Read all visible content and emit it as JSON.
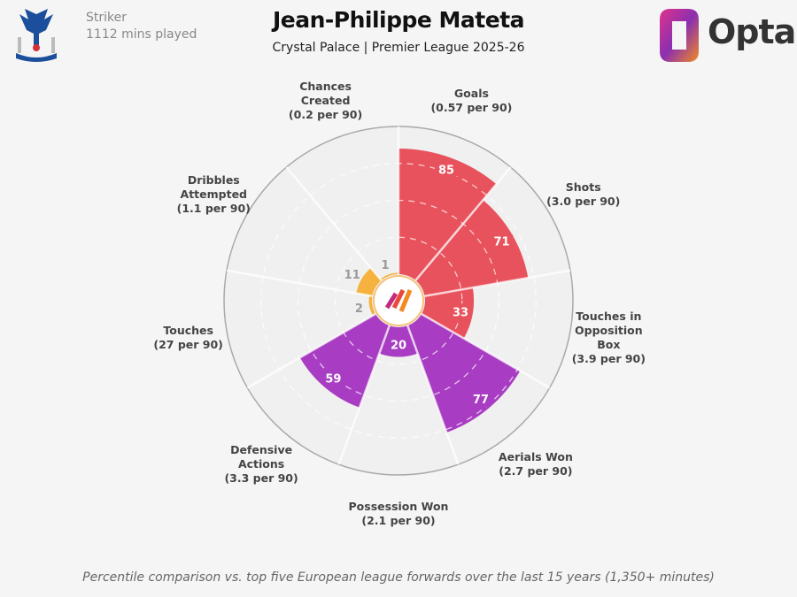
{
  "header": {
    "title": "Jean-Philippe Mateta",
    "subtitle": "Crystal Palace | Premier League 2025-26",
    "position": "Striker",
    "minutes": "1112 mins played",
    "brand": "Opta"
  },
  "footnote": "Percentile comparison vs. top five European league forwards over the last 15 years (1,350+ minutes)",
  "chart_data": {
    "type": "polar-bar",
    "range": [
      0,
      100
    ],
    "colors": {
      "attacking": "#e8525c",
      "defending": "#a83cc2",
      "possession": "#f6b23e"
    },
    "categories": [
      {
        "name": "Goals",
        "sub": "(0.57 per 90)",
        "value": 85,
        "group": "attacking"
      },
      {
        "name": "Shots",
        "sub": "(3.0 per 90)",
        "value": 71,
        "group": "attacking"
      },
      {
        "name": "Touches in Opposition Box",
        "sub": "(3.9 per 90)",
        "value": 33,
        "group": "attacking"
      },
      {
        "name": "Aerials Won",
        "sub": "(2.7 per 90)",
        "value": 77,
        "group": "defending"
      },
      {
        "name": "Possession Won",
        "sub": "(2.1 per 90)",
        "value": 20,
        "group": "defending"
      },
      {
        "name": "Defensive Actions",
        "sub": "(3.3 per 90)",
        "value": 59,
        "group": "defending"
      },
      {
        "name": "Touches",
        "sub": "(27 per 90)",
        "value": 2,
        "group": "possession"
      },
      {
        "name": "Dribbles Attempted",
        "sub": "(1.1 per 90)",
        "value": 11,
        "group": "possession"
      },
      {
        "name": "Chances Created",
        "sub": "(0.2 per 90)",
        "value": 1,
        "group": "possession"
      }
    ]
  }
}
